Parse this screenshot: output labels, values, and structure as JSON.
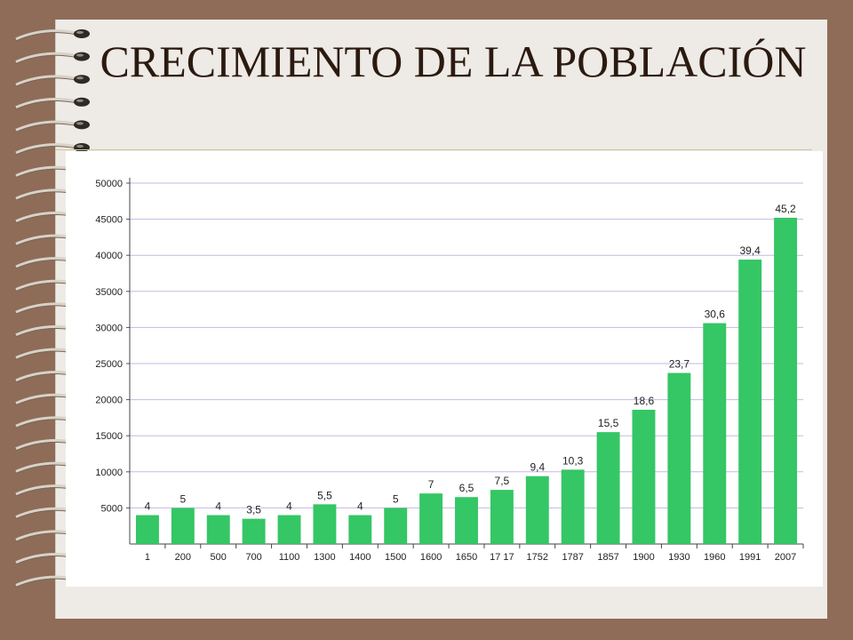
{
  "slide": {
    "title": "CRECIMIENTO DE LA POBLACIÓN"
  },
  "colors": {
    "background": "#8e6c58",
    "paper": "#eeeae6",
    "bar": "#35c665",
    "grid": "#c9b7e4",
    "title_text": "#2b1a10"
  },
  "icons": [
    "spiral-binding-icon"
  ],
  "chart_data": {
    "type": "bar",
    "title": "",
    "xlabel": "",
    "ylabel": "",
    "ylim": [
      0,
      50000
    ],
    "yticks": [
      5000,
      10000,
      15000,
      20000,
      25000,
      30000,
      35000,
      40000,
      45000,
      50000
    ],
    "ytick_labels": [
      "5000",
      "10000",
      "15000",
      "20000",
      "25000",
      "30000",
      "35000",
      "40000",
      "45000",
      "50000"
    ],
    "grid": true,
    "categories": [
      "1",
      "200",
      "500",
      "700",
      "1100",
      "1300",
      "1400",
      "1500",
      "1600",
      "1650",
      "17 17",
      "1752",
      "1787",
      "1857",
      "1900",
      "1930",
      "1960",
      "1991",
      "2007"
    ],
    "values": [
      4000,
      5000,
      4000,
      3500,
      4000,
      5500,
      4000,
      5000,
      7000,
      6500,
      7500,
      9400,
      10300,
      15500,
      18600,
      23700,
      30600,
      39400,
      45200
    ],
    "data_labels": [
      "4",
      "5",
      "4",
      "3,5",
      "4",
      "5,5",
      "4",
      "5",
      "7",
      "6,5",
      "7,5",
      "9,4",
      "10,3",
      "15,5",
      "18,6",
      "23,7",
      "30,6",
      "39,4",
      "45,2"
    ]
  }
}
